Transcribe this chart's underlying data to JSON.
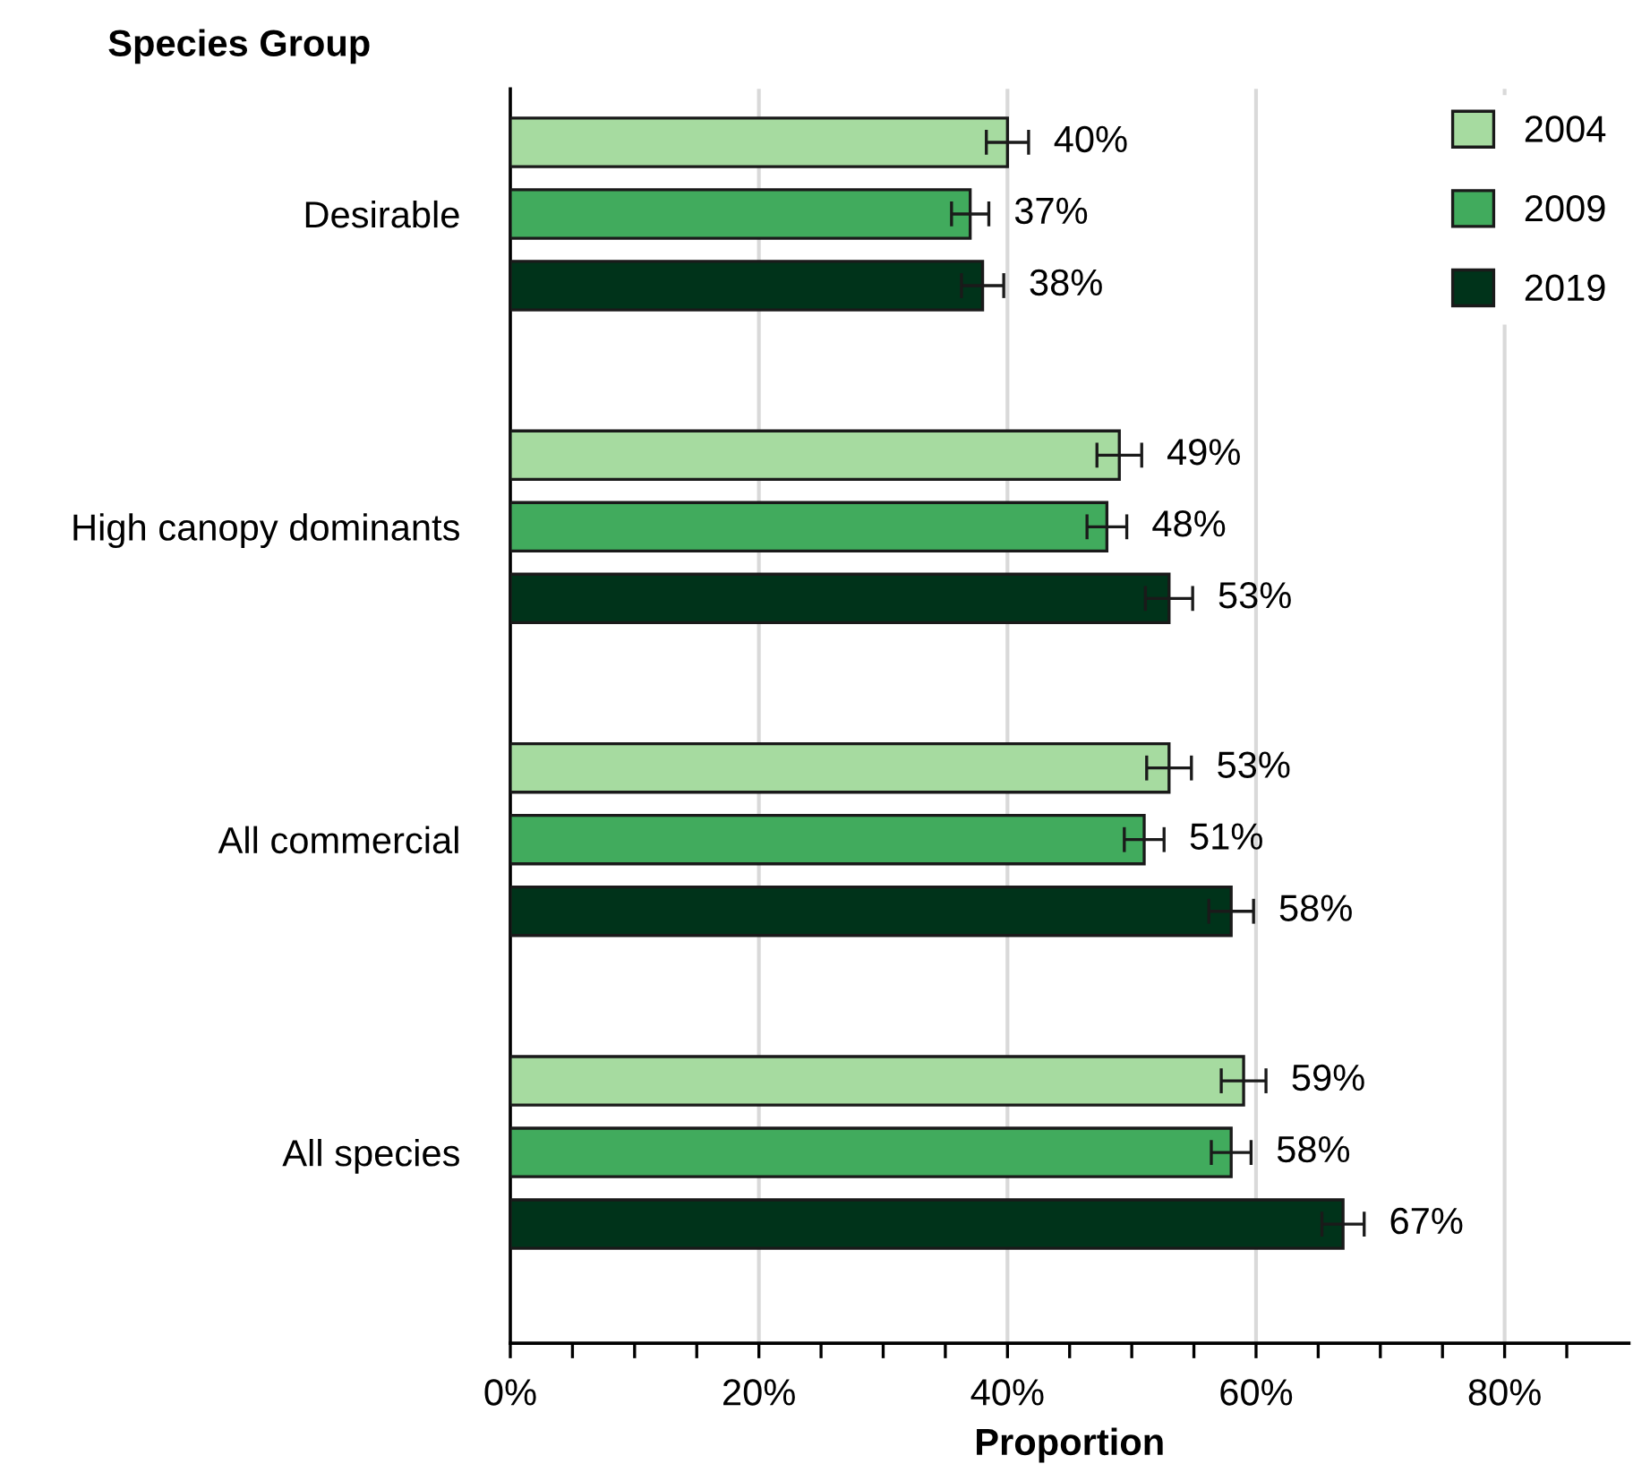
{
  "chart_data": {
    "type": "bar",
    "orientation": "horizontal",
    "ylabel": "Species Group",
    "xlabel": "Proportion",
    "categories": [
      "Desirable",
      "High canopy dominants",
      "All commercial",
      "All species"
    ],
    "series": [
      {
        "name": "2004",
        "color": "#a6dba0",
        "values": [
          40,
          49,
          53,
          59
        ],
        "errors": [
          1.7,
          1.8,
          1.8,
          1.8
        ]
      },
      {
        "name": "2009",
        "color": "#41ab5d",
        "values": [
          37,
          48,
          51,
          58
        ],
        "errors": [
          1.5,
          1.6,
          1.6,
          1.6
        ]
      },
      {
        "name": "2019",
        "color": "#00331a",
        "values": [
          38,
          53,
          58,
          67
        ],
        "errors": [
          1.7,
          1.9,
          1.8,
          1.7
        ]
      }
    ],
    "value_labels": [
      [
        "40%",
        "49%",
        "53%",
        "59%"
      ],
      [
        "37%",
        "48%",
        "51%",
        "58%"
      ],
      [
        "38%",
        "53%",
        "58%",
        "67%"
      ]
    ],
    "xlim": [
      0,
      90
    ],
    "xticks": [
      {
        "value": 0,
        "label": "0%"
      },
      {
        "value": 5,
        "label": null
      },
      {
        "value": 10,
        "label": null
      },
      {
        "value": 15,
        "label": null
      },
      {
        "value": 20,
        "label": "20%"
      },
      {
        "value": 25,
        "label": null
      },
      {
        "value": 30,
        "label": null
      },
      {
        "value": 35,
        "label": null
      },
      {
        "value": 40,
        "label": "40%"
      },
      {
        "value": 45,
        "label": null
      },
      {
        "value": 50,
        "label": null
      },
      {
        "value": 55,
        "label": null
      },
      {
        "value": 60,
        "label": "60%"
      },
      {
        "value": 65,
        "label": null
      },
      {
        "value": 70,
        "label": null
      },
      {
        "value": 75,
        "label": null
      },
      {
        "value": 80,
        "label": "80%"
      },
      {
        "value": 85,
        "label": null
      }
    ],
    "grid": "x",
    "legend": "top right"
  }
}
